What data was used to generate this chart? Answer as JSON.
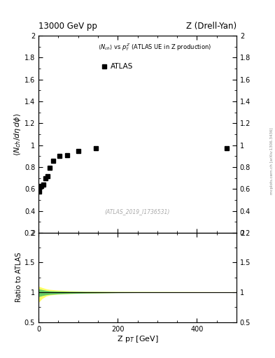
{
  "title_left": "13000 GeV pp",
  "title_right": "Z (Drell-Yan)",
  "panel_title": "<N_{ch}> vs p_{T}^{Z} (ATLAS UE in Z production)",
  "watermark": "(ATLAS_2019_I1736531)",
  "right_label": "mcplots.cern.ch [arXiv:1306.3436]",
  "data_x": [
    2.5,
    7.5,
    12.5,
    17.5,
    22.5,
    27.5,
    37.5,
    52.5,
    72.5,
    100.0,
    145.0,
    475.0
  ],
  "data_y": [
    0.575,
    0.625,
    0.64,
    0.7,
    0.715,
    0.79,
    0.855,
    0.9,
    0.91,
    0.945,
    0.975,
    0.975
  ],
  "data_label": "ATLAS",
  "ylabel_main": "$\\langle N_{ch}/d\\eta\\,d\\phi\\rangle$",
  "ylabel_ratio": "Ratio to ATLAS",
  "xlabel": "Z p$_{T}$ [GeV]",
  "xlim": [
    0,
    500
  ],
  "ylim_main": [
    0.2,
    2.0
  ],
  "ylim_ratio": [
    0.5,
    2.0
  ],
  "yticks_main": [
    0.2,
    0.4,
    0.6,
    0.8,
    1.0,
    1.2,
    1.4,
    1.6,
    1.8,
    2.0
  ],
  "yticks_ratio": [
    0.5,
    1.0,
    1.5,
    2.0
  ],
  "xticks": [
    0,
    200,
    400
  ],
  "ratio_band_yellow_x": [
    0.0,
    3.0,
    6.0,
    10.0,
    15.0,
    20.0,
    30.0,
    50.0,
    80.0,
    120.0,
    200.0,
    500.0
  ],
  "ratio_band_yellow_upper": [
    1.1,
    1.09,
    1.085,
    1.075,
    1.065,
    1.055,
    1.042,
    1.03,
    1.02,
    1.013,
    1.008,
    1.003
  ],
  "ratio_band_yellow_lower": [
    0.82,
    0.84,
    0.86,
    0.89,
    0.91,
    0.93,
    0.948,
    0.962,
    0.973,
    0.981,
    0.99,
    0.998
  ],
  "ratio_band_green_x": [
    0.0,
    3.0,
    6.0,
    10.0,
    15.0,
    20.0,
    30.0,
    50.0,
    80.0,
    120.0,
    200.0,
    500.0
  ],
  "ratio_band_green_upper": [
    1.055,
    1.05,
    1.045,
    1.04,
    1.033,
    1.027,
    1.02,
    1.015,
    1.01,
    1.007,
    1.004,
    1.001
  ],
  "ratio_band_green_lower": [
    0.92,
    0.925,
    0.93,
    0.938,
    0.945,
    0.952,
    0.96,
    0.968,
    0.975,
    0.981,
    0.988,
    0.999
  ],
  "marker_color": "black",
  "marker_style": "s",
  "marker_size": 4,
  "band_yellow_color": "#ffff66",
  "band_green_color": "#66cc66",
  "ratio_line_color": "black",
  "background_color": "white"
}
